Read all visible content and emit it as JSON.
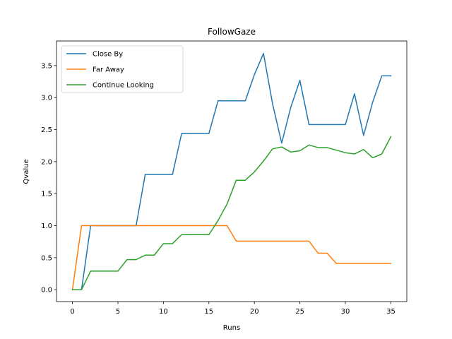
{
  "chart_data": {
    "type": "line",
    "title": "FollowGaze",
    "xlabel": "Runs",
    "ylabel": "Qvalue",
    "xlim": [
      -1.75,
      36.75
    ],
    "ylim": [
      -0.185,
      3.885
    ],
    "xticks": [
      0,
      5,
      10,
      15,
      20,
      25,
      30,
      35
    ],
    "yticks": [
      0.0,
      0.5,
      1.0,
      1.5,
      2.0,
      2.5,
      3.0,
      3.5
    ],
    "xtick_labels": [
      "0",
      "5",
      "10",
      "15",
      "20",
      "25",
      "30",
      "35"
    ],
    "ytick_labels": [
      "0.0",
      "0.5",
      "1.0",
      "1.5",
      "2.0",
      "2.5",
      "3.0",
      "3.5"
    ],
    "grid": false,
    "legend_position": "upper-left",
    "x": [
      0,
      1,
      2,
      3,
      4,
      5,
      6,
      7,
      8,
      9,
      10,
      11,
      12,
      13,
      14,
      15,
      16,
      17,
      18,
      19,
      20,
      21,
      22,
      23,
      24,
      25,
      26,
      27,
      28,
      29,
      30,
      31,
      32,
      33,
      34,
      35
    ],
    "series": [
      {
        "name": "Close By",
        "color": "#1f77b4",
        "values": [
          0,
          0,
          1.0,
          1.0,
          1.0,
          1.0,
          1.0,
          1.0,
          1.8,
          1.8,
          1.8,
          1.8,
          2.44,
          2.44,
          2.44,
          2.44,
          2.95,
          2.95,
          2.95,
          2.95,
          3.36,
          3.69,
          2.9,
          2.29,
          2.85,
          3.27,
          2.58,
          2.58,
          2.58,
          2.58,
          2.58,
          3.06,
          2.41,
          2.93,
          3.34,
          3.34
        ]
      },
      {
        "name": "Far Away",
        "color": "#ff7f0e",
        "values": [
          0,
          1.0,
          1.0,
          1.0,
          1.0,
          1.0,
          1.0,
          1.0,
          1.0,
          1.0,
          1.0,
          1.0,
          1.0,
          1.0,
          1.0,
          1.0,
          1.0,
          1.0,
          0.76,
          0.76,
          0.76,
          0.76,
          0.76,
          0.76,
          0.76,
          0.76,
          0.76,
          0.57,
          0.57,
          0.41,
          0.41,
          0.41,
          0.41,
          0.41,
          0.41,
          0.41
        ]
      },
      {
        "name": "Continue Looking",
        "color": "#2ca02c",
        "values": [
          0,
          0,
          0.29,
          0.29,
          0.29,
          0.29,
          0.47,
          0.47,
          0.54,
          0.54,
          0.72,
          0.72,
          0.86,
          0.86,
          0.86,
          0.86,
          1.08,
          1.34,
          1.71,
          1.71,
          1.84,
          2.01,
          2.2,
          2.23,
          2.15,
          2.17,
          2.26,
          2.22,
          2.22,
          2.18,
          2.14,
          2.12,
          2.19,
          2.06,
          2.12,
          2.39
        ]
      }
    ]
  }
}
